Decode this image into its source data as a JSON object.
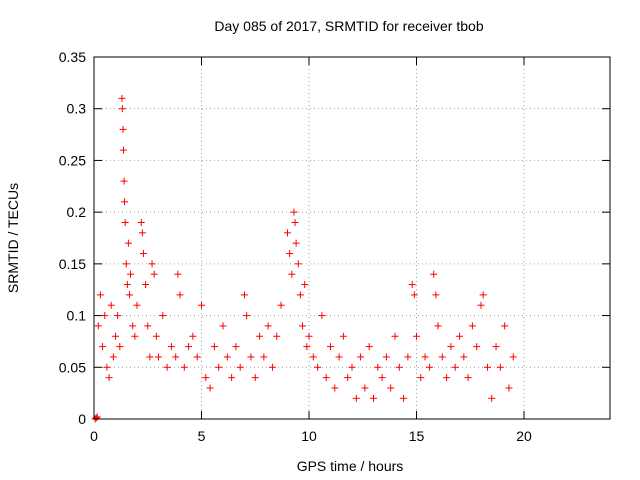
{
  "chart_data": {
    "type": "scatter",
    "title": "Day 085 of 2017, SRMTID for receiver tbob",
    "xlabel": "GPS time / hours",
    "ylabel": "SRMTID / TECUs",
    "xlim": [
      0,
      24
    ],
    "ylim": [
      0,
      0.35
    ],
    "xticks": [
      0,
      5,
      10,
      15,
      20
    ],
    "yticks": [
      0,
      0.05,
      0.1,
      0.15,
      0.2,
      0.25,
      0.3,
      0.35
    ],
    "ytick_labels": [
      "0",
      "0.05",
      "0.1",
      "0.15",
      "0.2",
      "0.25",
      "0.3",
      "0.35"
    ],
    "grid": true,
    "marker": "+",
    "color": "#ff0000",
    "series": [
      {
        "name": "SRMTID",
        "points": [
          [
            0.05,
            0.0
          ],
          [
            0.1,
            0.001
          ],
          [
            0.15,
            0.002
          ],
          [
            0.2,
            0.09
          ],
          [
            0.3,
            0.12
          ],
          [
            0.4,
            0.07
          ],
          [
            0.5,
            0.1
          ],
          [
            0.6,
            0.05
          ],
          [
            0.7,
            0.04
          ],
          [
            0.8,
            0.11
          ],
          [
            0.9,
            0.06
          ],
          [
            1.0,
            0.08
          ],
          [
            1.1,
            0.1
          ],
          [
            1.2,
            0.07
          ],
          [
            1.3,
            0.31
          ],
          [
            1.32,
            0.3
          ],
          [
            1.35,
            0.28
          ],
          [
            1.37,
            0.26
          ],
          [
            1.4,
            0.23
          ],
          [
            1.42,
            0.21
          ],
          [
            1.45,
            0.19
          ],
          [
            1.5,
            0.15
          ],
          [
            1.55,
            0.13
          ],
          [
            1.6,
            0.17
          ],
          [
            1.65,
            0.12
          ],
          [
            1.7,
            0.14
          ],
          [
            1.8,
            0.09
          ],
          [
            1.9,
            0.08
          ],
          [
            2.0,
            0.11
          ],
          [
            2.2,
            0.19
          ],
          [
            2.25,
            0.18
          ],
          [
            2.3,
            0.16
          ],
          [
            2.4,
            0.13
          ],
          [
            2.5,
            0.09
          ],
          [
            2.6,
            0.06
          ],
          [
            2.7,
            0.15
          ],
          [
            2.8,
            0.14
          ],
          [
            2.9,
            0.08
          ],
          [
            3.0,
            0.06
          ],
          [
            3.2,
            0.1
          ],
          [
            3.4,
            0.05
          ],
          [
            3.6,
            0.07
          ],
          [
            3.8,
            0.06
          ],
          [
            3.9,
            0.14
          ],
          [
            4.0,
            0.12
          ],
          [
            4.2,
            0.05
          ],
          [
            4.4,
            0.07
          ],
          [
            4.6,
            0.08
          ],
          [
            4.8,
            0.06
          ],
          [
            5.0,
            0.11
          ],
          [
            5.2,
            0.04
          ],
          [
            5.4,
            0.03
          ],
          [
            5.6,
            0.07
          ],
          [
            5.8,
            0.05
          ],
          [
            6.0,
            0.09
          ],
          [
            6.2,
            0.06
          ],
          [
            6.4,
            0.04
          ],
          [
            6.6,
            0.07
          ],
          [
            6.8,
            0.05
          ],
          [
            7.0,
            0.12
          ],
          [
            7.1,
            0.1
          ],
          [
            7.3,
            0.06
          ],
          [
            7.5,
            0.04
          ],
          [
            7.7,
            0.08
          ],
          [
            7.9,
            0.06
          ],
          [
            8.1,
            0.09
          ],
          [
            8.3,
            0.05
          ],
          [
            8.5,
            0.08
          ],
          [
            8.7,
            0.11
          ],
          [
            9.0,
            0.18
          ],
          [
            9.1,
            0.16
          ],
          [
            9.2,
            0.14
          ],
          [
            9.3,
            0.2
          ],
          [
            9.35,
            0.19
          ],
          [
            9.4,
            0.17
          ],
          [
            9.5,
            0.15
          ],
          [
            9.6,
            0.12
          ],
          [
            9.7,
            0.09
          ],
          [
            9.8,
            0.13
          ],
          [
            9.9,
            0.07
          ],
          [
            10.0,
            0.08
          ],
          [
            10.2,
            0.06
          ],
          [
            10.4,
            0.05
          ],
          [
            10.6,
            0.1
          ],
          [
            10.8,
            0.04
          ],
          [
            11.0,
            0.07
          ],
          [
            11.2,
            0.03
          ],
          [
            11.4,
            0.06
          ],
          [
            11.6,
            0.08
          ],
          [
            11.8,
            0.04
          ],
          [
            12.0,
            0.05
          ],
          [
            12.2,
            0.02
          ],
          [
            12.4,
            0.06
          ],
          [
            12.6,
            0.03
          ],
          [
            12.8,
            0.07
          ],
          [
            13.0,
            0.02
          ],
          [
            13.2,
            0.05
          ],
          [
            13.4,
            0.04
          ],
          [
            13.6,
            0.06
          ],
          [
            13.8,
            0.03
          ],
          [
            14.0,
            0.08
          ],
          [
            14.2,
            0.05
          ],
          [
            14.4,
            0.02
          ],
          [
            14.6,
            0.06
          ],
          [
            14.8,
            0.13
          ],
          [
            14.9,
            0.12
          ],
          [
            15.0,
            0.08
          ],
          [
            15.2,
            0.04
          ],
          [
            15.4,
            0.06
          ],
          [
            15.6,
            0.05
          ],
          [
            15.8,
            0.14
          ],
          [
            15.9,
            0.12
          ],
          [
            16.0,
            0.09
          ],
          [
            16.2,
            0.06
          ],
          [
            16.4,
            0.04
          ],
          [
            16.6,
            0.07
          ],
          [
            16.8,
            0.05
          ],
          [
            17.0,
            0.08
          ],
          [
            17.2,
            0.06
          ],
          [
            17.4,
            0.04
          ],
          [
            17.6,
            0.09
          ],
          [
            17.8,
            0.07
          ],
          [
            18.0,
            0.11
          ],
          [
            18.1,
            0.12
          ],
          [
            18.3,
            0.05
          ],
          [
            18.5,
            0.02
          ],
          [
            18.7,
            0.07
          ],
          [
            18.9,
            0.05
          ],
          [
            19.1,
            0.09
          ],
          [
            19.3,
            0.03
          ],
          [
            19.5,
            0.06
          ]
        ]
      }
    ]
  }
}
